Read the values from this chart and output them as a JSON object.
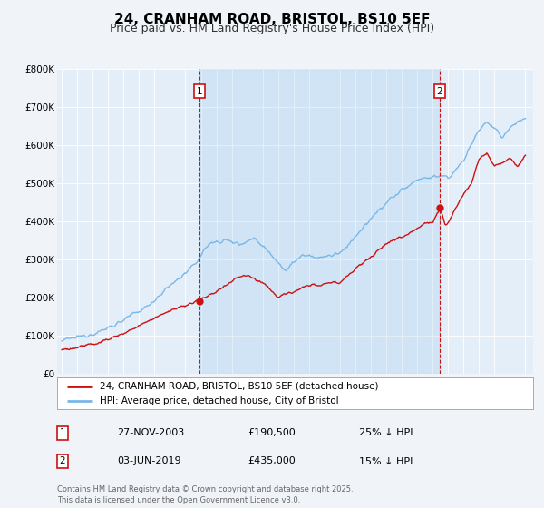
{
  "title": "24, CRANHAM ROAD, BRISTOL, BS10 5EF",
  "subtitle": "Price paid vs. HM Land Registry's House Price Index (HPI)",
  "title_fontsize": 11,
  "subtitle_fontsize": 9,
  "background_color": "#f0f4f8",
  "plot_bg_color": "#e4eef8",
  "hpi_color": "#7ab8e8",
  "price_color": "#cc1111",
  "ylim": [
    0,
    800000
  ],
  "yticks": [
    0,
    100000,
    200000,
    300000,
    400000,
    500000,
    600000,
    700000,
    800000
  ],
  "ytick_labels": [
    "£0",
    "£100K",
    "£200K",
    "£300K",
    "£400K",
    "£500K",
    "£600K",
    "£700K",
    "£800K"
  ],
  "marker1_x": 2003.9,
  "marker1_price": 190500,
  "marker2_x": 2019.45,
  "marker2_price": 435000,
  "legend_line1": "24, CRANHAM ROAD, BRISTOL, BS10 5EF (detached house)",
  "legend_line2": "HPI: Average price, detached house, City of Bristol",
  "table_row1": [
    "1",
    "27-NOV-2003",
    "£190,500",
    "25% ↓ HPI"
  ],
  "table_row2": [
    "2",
    "03-JUN-2019",
    "£435,000",
    "15% ↓ HPI"
  ],
  "footer": "Contains HM Land Registry data © Crown copyright and database right 2025.\nThis data is licensed under the Open Government Licence v3.0."
}
